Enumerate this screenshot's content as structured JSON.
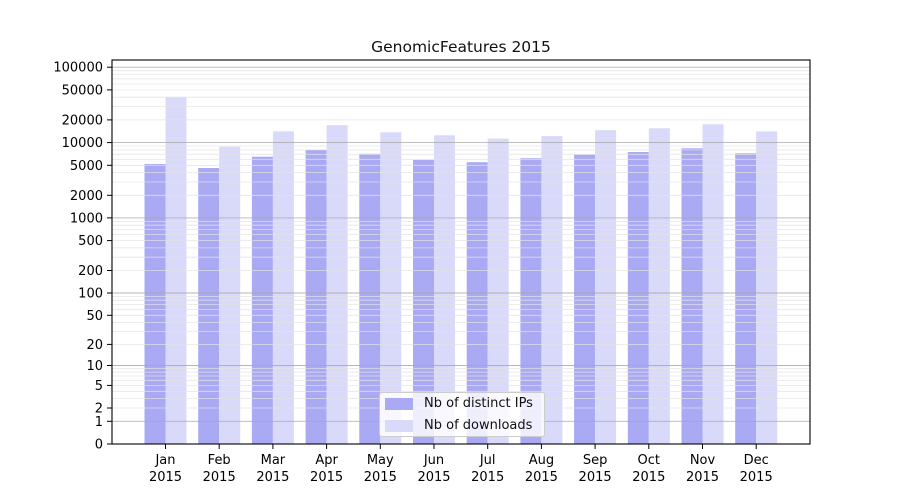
{
  "chart_data": {
    "type": "bar",
    "title": "GenomicFeatures 2015",
    "year_label": "2015",
    "categories": [
      "Jan",
      "Feb",
      "Mar",
      "Apr",
      "May",
      "Jun",
      "Jul",
      "Aug",
      "Sep",
      "Oct",
      "Nov",
      "Dec"
    ],
    "series": [
      {
        "name": "Nb of distinct IPs",
        "color": "#a9a9f4",
        "values": [
          5200,
          4600,
          6500,
          8000,
          7100,
          5900,
          5500,
          6200,
          6900,
          7500,
          8400,
          7200
        ]
      },
      {
        "name": "Nb of downloads",
        "color": "#d9d9f9",
        "values": [
          40000,
          8800,
          14100,
          17000,
          13700,
          12500,
          11300,
          12200,
          14600,
          15500,
          17500,
          14100
        ]
      }
    ],
    "yscale": "log10(x+1)",
    "yticks": [
      0,
      1,
      2,
      5,
      10,
      20,
      50,
      100,
      200,
      500,
      1000,
      2000,
      5000,
      10000,
      20000,
      50000,
      100000
    ],
    "ylim": [
      0,
      125000
    ],
    "xlabel": "",
    "ylabel": "",
    "grid": "horizontal",
    "grid_major_color": "#a8a8a8",
    "grid_minor_color": "#e2e2e2",
    "axis_color": "#000000",
    "legend_position": "lower-center"
  }
}
